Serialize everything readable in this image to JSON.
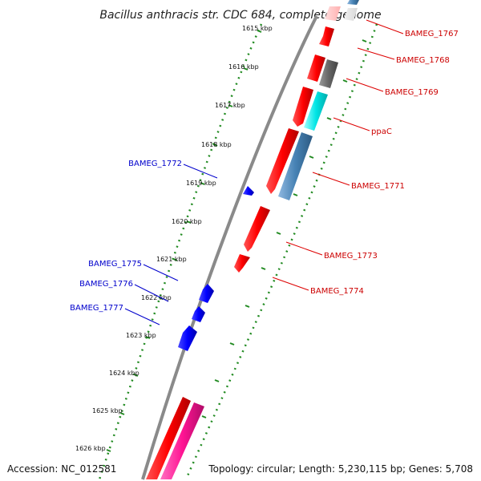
{
  "title": "Bacillus anthracis str. CDC 684, complete genome",
  "footer": {
    "accession": "Accession: NC_012581",
    "stats": "Topology: circular; Length: 5,230,115 bp; Genes: 5,708"
  },
  "ticks": [
    "1615 kbp",
    "1616 kbp",
    "1617 kbp",
    "1618 kbp",
    "1619 kbp",
    "1620 kbp",
    "1621 kbp",
    "1622 kbp",
    "1623 kbp",
    "1624 kbp",
    "1625 kbp",
    "1626 kbp"
  ],
  "gene_labels": {
    "BAMEG_1767": "BAMEG_1767",
    "BAMEG_1768": "BAMEG_1768",
    "BAMEG_1769": "BAMEG_1769",
    "ppaC": "ppaC",
    "BAMEG_1771": "BAMEG_1771",
    "BAMEG_1772": "BAMEG_1772",
    "BAMEG_1773": "BAMEG_1773",
    "BAMEG_1774": "BAMEG_1774",
    "BAMEG_1775": "BAMEG_1775",
    "BAMEG_1776": "BAMEG_1776",
    "BAMEG_1777": "BAMEG_1777"
  },
  "colors": {
    "forward_cds": "#ff0000",
    "reverse_cds": "#0000ff",
    "trna": "#00e5e5",
    "pseudo": "#666666",
    "other": "#4682b4",
    "misc": "#ff1493",
    "faded": "#ffc0c0",
    "backbone": "#808080",
    "ticks": "#228b22",
    "forward_label": "#cc0000",
    "reverse_label": "#0000cc"
  }
}
